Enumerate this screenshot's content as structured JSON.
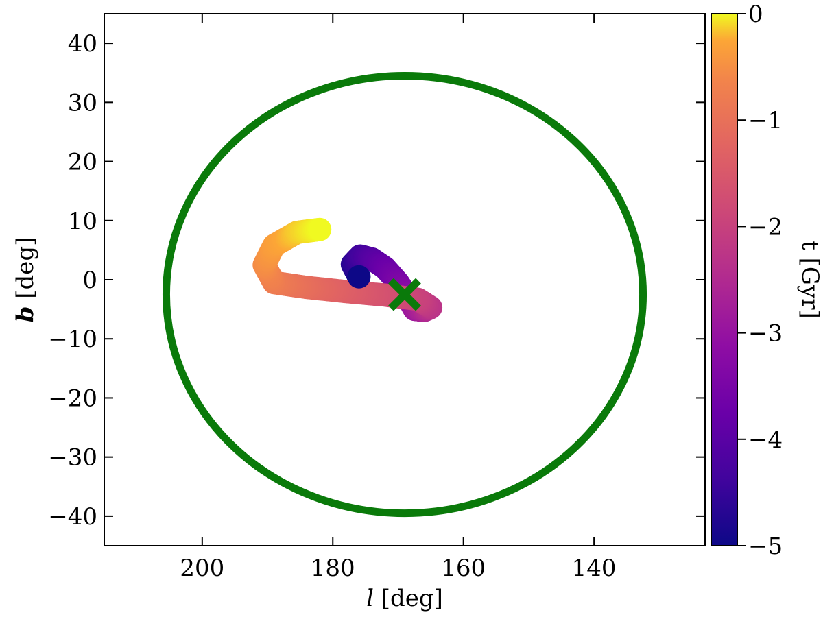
{
  "chart_data": {
    "type": "scatter",
    "title": "",
    "xlabel_symbol": "l",
    "xlabel_unit": "[deg]",
    "ylabel_symbol": "b",
    "ylabel_unit": "[deg]",
    "xlim": [
      215,
      123
    ],
    "ylim": [
      -45,
      45
    ],
    "x_inverted": true,
    "x_ticks": [
      200,
      180,
      160,
      140
    ],
    "y_ticks": [
      40,
      30,
      20,
      10,
      0,
      -10,
      -20,
      -30,
      -40
    ],
    "x_tick_labels": [
      "200",
      "180",
      "160",
      "140"
    ],
    "y_tick_labels": [
      "40",
      "30",
      "20",
      "10",
      "0",
      "−10",
      "−20",
      "−30",
      "−40"
    ],
    "grid": false,
    "colorbar": {
      "label": "t [Gyr]",
      "colormap": "plasma",
      "range": [
        -5,
        0
      ],
      "ticks": [
        0,
        -1,
        -2,
        -3,
        -4,
        -5
      ],
      "tick_labels": [
        "0",
        "−1",
        "−2",
        "−3",
        "−4",
        "−5"
      ]
    },
    "trajectory": {
      "name": "",
      "points": [
        {
          "l": 176.0,
          "b": 0.5,
          "t": -5.0
        },
        {
          "l": 177.0,
          "b": 2.6,
          "t": -4.7
        },
        {
          "l": 175.8,
          "b": 4.0,
          "t": -4.4
        },
        {
          "l": 174.0,
          "b": 3.5,
          "t": -4.1
        },
        {
          "l": 172.0,
          "b": 2.0,
          "t": -3.8
        },
        {
          "l": 170.0,
          "b": -0.5,
          "t": -3.5
        },
        {
          "l": 168.5,
          "b": -3.0,
          "t": -3.2
        },
        {
          "l": 167.5,
          "b": -5.0,
          "t": -2.9
        },
        {
          "l": 166.0,
          "b": -5.2,
          "t": -2.6
        },
        {
          "l": 165.0,
          "b": -4.7,
          "t": -2.3
        },
        {
          "l": 167.0,
          "b": -3.3,
          "t": -2.0
        },
        {
          "l": 172.0,
          "b": -2.6,
          "t": -1.7
        },
        {
          "l": 178.0,
          "b": -2.0,
          "t": -1.4
        },
        {
          "l": 184.0,
          "b": -1.3,
          "t": -1.1
        },
        {
          "l": 189.0,
          "b": -0.5,
          "t": -0.8
        },
        {
          "l": 190.5,
          "b": 2.5,
          "t": -0.55
        },
        {
          "l": 189.0,
          "b": 5.8,
          "t": -0.35
        },
        {
          "l": 185.5,
          "b": 8.0,
          "t": -0.15
        },
        {
          "l": 182.0,
          "b": 8.5,
          "t": 0.0
        }
      ]
    },
    "marker": {
      "type": "x",
      "l": 169.0,
      "b": -2.5,
      "color": "#0a7a0a"
    },
    "ellipse": {
      "center_l": 169.0,
      "center_b": -2.5,
      "radius_l": 36.5,
      "radius_b": 37.0,
      "color": "#0a7a0a"
    }
  }
}
